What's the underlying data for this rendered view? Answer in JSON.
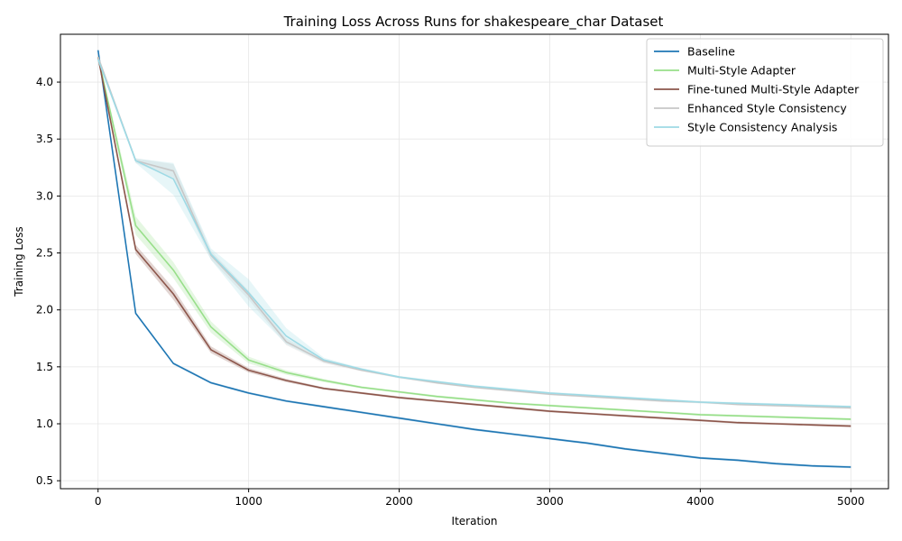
{
  "chart_data": {
    "type": "line",
    "title": "Training Loss Across Runs for shakespeare_char Dataset",
    "xlabel": "Iteration",
    "ylabel": "Training Loss",
    "xlim": [
      -250,
      5250
    ],
    "ylim": [
      0.43,
      4.42
    ],
    "xticks": [
      0,
      1000,
      2000,
      3000,
      4000,
      5000
    ],
    "yticks": [
      0.5,
      1.0,
      1.5,
      2.0,
      2.5,
      3.0,
      3.5,
      4.0
    ],
    "grid": true,
    "legend_position": "top-right",
    "x": [
      0,
      250,
      500,
      750,
      1000,
      1250,
      1500,
      1750,
      2000,
      2250,
      2500,
      2750,
      3000,
      3250,
      3500,
      3750,
      4000,
      4250,
      4500,
      4750,
      5000
    ],
    "series": [
      {
        "name": "Baseline",
        "color": "#1f77b4",
        "values": [
          4.28,
          1.97,
          1.53,
          1.36,
          1.27,
          1.2,
          1.15,
          1.1,
          1.05,
          1.0,
          0.95,
          0.91,
          0.87,
          0.83,
          0.78,
          0.74,
          0.7,
          0.68,
          0.65,
          0.63,
          0.62
        ],
        "spread": [
          0.01,
          0.01,
          0.01,
          0.01,
          0.01,
          0.01,
          0.01,
          0.01,
          0.01,
          0.01,
          0.01,
          0.01,
          0.01,
          0.01,
          0.01,
          0.01,
          0.01,
          0.01,
          0.01,
          0.01,
          0.01
        ]
      },
      {
        "name": "Multi-Style Adapter",
        "color": "#98df8a",
        "values": [
          4.22,
          2.74,
          2.35,
          1.85,
          1.56,
          1.45,
          1.38,
          1.32,
          1.28,
          1.24,
          1.21,
          1.18,
          1.16,
          1.14,
          1.12,
          1.1,
          1.08,
          1.07,
          1.06,
          1.05,
          1.04
        ],
        "spread": [
          0.02,
          0.08,
          0.07,
          0.05,
          0.03,
          0.02,
          0.015,
          0.01,
          0.01,
          0.01,
          0.01,
          0.01,
          0.01,
          0.01,
          0.01,
          0.01,
          0.01,
          0.01,
          0.01,
          0.01,
          0.01
        ]
      },
      {
        "name": "Fine-tuned Multi-Style Adapter",
        "color": "#8c564b",
        "values": [
          4.22,
          2.53,
          2.14,
          1.65,
          1.47,
          1.38,
          1.31,
          1.27,
          1.23,
          1.2,
          1.17,
          1.14,
          1.11,
          1.09,
          1.07,
          1.05,
          1.03,
          1.01,
          1.0,
          0.99,
          0.98
        ],
        "spread": [
          0.02,
          0.04,
          0.05,
          0.03,
          0.02,
          0.015,
          0.01,
          0.01,
          0.01,
          0.01,
          0.01,
          0.01,
          0.01,
          0.01,
          0.01,
          0.01,
          0.01,
          0.01,
          0.01,
          0.01,
          0.01
        ]
      },
      {
        "name": "Enhanced Style Consistency",
        "color": "#c7c7c7",
        "values": [
          4.22,
          3.31,
          3.22,
          2.48,
          2.13,
          1.72,
          1.55,
          1.47,
          1.41,
          1.36,
          1.32,
          1.29,
          1.26,
          1.24,
          1.22,
          1.2,
          1.19,
          1.17,
          1.16,
          1.15,
          1.14
        ],
        "spread": [
          0.02,
          0.02,
          0.06,
          0.04,
          0.04,
          0.03,
          0.02,
          0.01,
          0.01,
          0.01,
          0.01,
          0.01,
          0.01,
          0.01,
          0.01,
          0.01,
          0.01,
          0.01,
          0.01,
          0.01,
          0.01
        ]
      },
      {
        "name": "Style Consistency Analysis",
        "color": "#9edae5",
        "values": [
          4.2,
          3.31,
          3.15,
          2.49,
          2.15,
          1.77,
          1.56,
          1.48,
          1.41,
          1.37,
          1.33,
          1.3,
          1.27,
          1.25,
          1.23,
          1.21,
          1.19,
          1.18,
          1.17,
          1.16,
          1.15
        ],
        "spread": [
          0.02,
          0.02,
          0.14,
          0.05,
          0.12,
          0.07,
          0.02,
          0.01,
          0.01,
          0.01,
          0.01,
          0.01,
          0.01,
          0.01,
          0.01,
          0.01,
          0.01,
          0.01,
          0.01,
          0.01,
          0.01
        ]
      }
    ]
  }
}
